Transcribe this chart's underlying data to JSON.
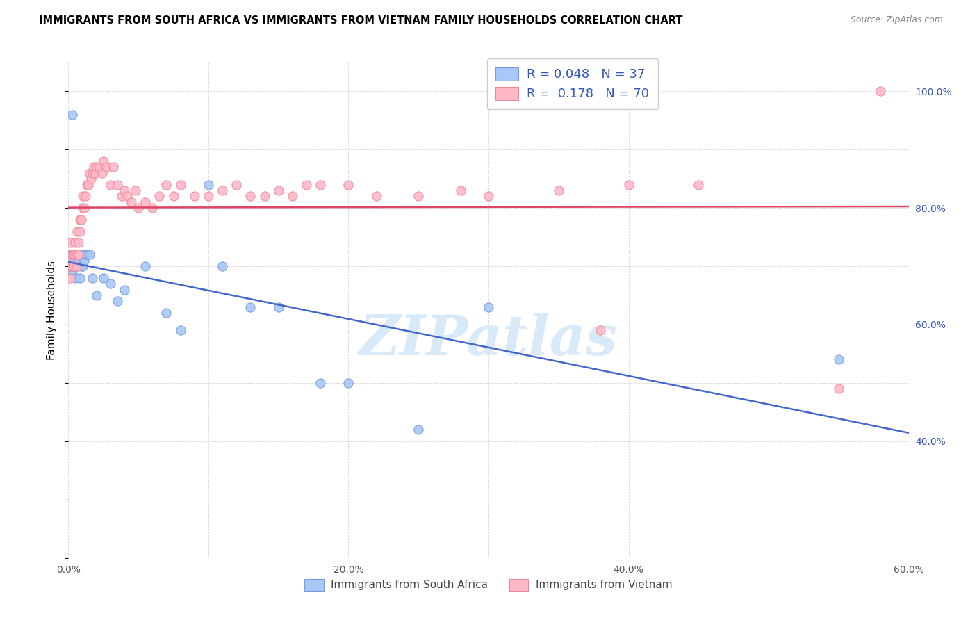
{
  "title": "IMMIGRANTS FROM SOUTH AFRICA VS IMMIGRANTS FROM VIETNAM FAMILY HOUSEHOLDS CORRELATION CHART",
  "source": "Source: ZipAtlas.com",
  "ylabel": "Family Households",
  "xlim": [
    0.0,
    0.6
  ],
  "ylim": [
    0.2,
    1.05
  ],
  "xtick_positions": [
    0.0,
    0.1,
    0.2,
    0.3,
    0.4,
    0.5,
    0.6
  ],
  "xtick_labels": [
    "0.0%",
    "",
    "20.0%",
    "",
    "40.0%",
    "",
    "60.0%"
  ],
  "yticks_right": [
    0.4,
    0.6,
    0.8,
    1.0
  ],
  "ytick_labels_right": [
    "40.0%",
    "60.0%",
    "80.0%",
    "100.0%"
  ],
  "color_blue_fill": "#a8c8f8",
  "color_blue_edge": "#7799dd",
  "color_pink_fill": "#ffb8c8",
  "color_pink_edge": "#ee8899",
  "color_trendline_blue": "#4466cc",
  "color_trendline_pink": "#dd4466",
  "color_text_axis": "#3355bb",
  "watermark_text": "ZIPatlas",
  "watermark_color": "#d8eaf8",
  "sa_x": [
    0.001,
    0.002,
    0.003,
    0.004,
    0.004,
    0.005,
    0.005,
    0.006,
    0.006,
    0.007,
    0.008,
    0.009,
    0.01,
    0.01,
    0.011,
    0.012,
    0.013,
    0.015,
    0.017,
    0.02,
    0.025,
    0.03,
    0.035,
    0.04,
    0.055,
    0.07,
    0.08,
    0.1,
    0.11,
    0.13,
    0.15,
    0.18,
    0.2,
    0.25,
    0.3,
    0.55,
    0.003
  ],
  "sa_y": [
    0.7,
    0.72,
    0.69,
    0.71,
    0.7,
    0.72,
    0.68,
    0.7,
    0.72,
    0.71,
    0.68,
    0.7,
    0.72,
    0.7,
    0.71,
    0.72,
    0.72,
    0.72,
    0.68,
    0.65,
    0.68,
    0.67,
    0.64,
    0.66,
    0.7,
    0.62,
    0.59,
    0.84,
    0.7,
    0.63,
    0.63,
    0.5,
    0.5,
    0.42,
    0.63,
    0.54,
    0.96
  ],
  "vn_x": [
    0.001,
    0.001,
    0.002,
    0.002,
    0.003,
    0.003,
    0.004,
    0.004,
    0.005,
    0.005,
    0.006,
    0.006,
    0.006,
    0.007,
    0.007,
    0.008,
    0.008,
    0.009,
    0.01,
    0.01,
    0.011,
    0.012,
    0.013,
    0.014,
    0.015,
    0.016,
    0.017,
    0.018,
    0.019,
    0.02,
    0.022,
    0.024,
    0.025,
    0.027,
    0.03,
    0.032,
    0.035,
    0.038,
    0.04,
    0.042,
    0.045,
    0.048,
    0.05,
    0.055,
    0.06,
    0.065,
    0.07,
    0.075,
    0.08,
    0.09,
    0.1,
    0.11,
    0.12,
    0.13,
    0.14,
    0.15,
    0.16,
    0.17,
    0.18,
    0.2,
    0.22,
    0.25,
    0.28,
    0.3,
    0.35,
    0.38,
    0.4,
    0.45,
    0.55,
    0.58
  ],
  "vn_y": [
    0.7,
    0.68,
    0.72,
    0.74,
    0.72,
    0.7,
    0.7,
    0.72,
    0.74,
    0.72,
    0.76,
    0.72,
    0.7,
    0.74,
    0.72,
    0.76,
    0.78,
    0.78,
    0.8,
    0.82,
    0.8,
    0.82,
    0.84,
    0.84,
    0.86,
    0.85,
    0.86,
    0.87,
    0.86,
    0.87,
    0.87,
    0.86,
    0.88,
    0.87,
    0.84,
    0.87,
    0.84,
    0.82,
    0.83,
    0.82,
    0.81,
    0.83,
    0.8,
    0.81,
    0.8,
    0.82,
    0.84,
    0.82,
    0.84,
    0.82,
    0.82,
    0.83,
    0.84,
    0.82,
    0.82,
    0.83,
    0.82,
    0.84,
    0.84,
    0.84,
    0.82,
    0.82,
    0.83,
    0.82,
    0.83,
    0.59,
    0.84,
    0.84,
    0.49,
    1.0
  ],
  "legend1_label": "R = 0.048   N = 37",
  "legend2_label": "R =  0.178   N = 70",
  "bottom_legend1": "Immigrants from South Africa",
  "bottom_legend2": "Immigrants from Vietnam"
}
